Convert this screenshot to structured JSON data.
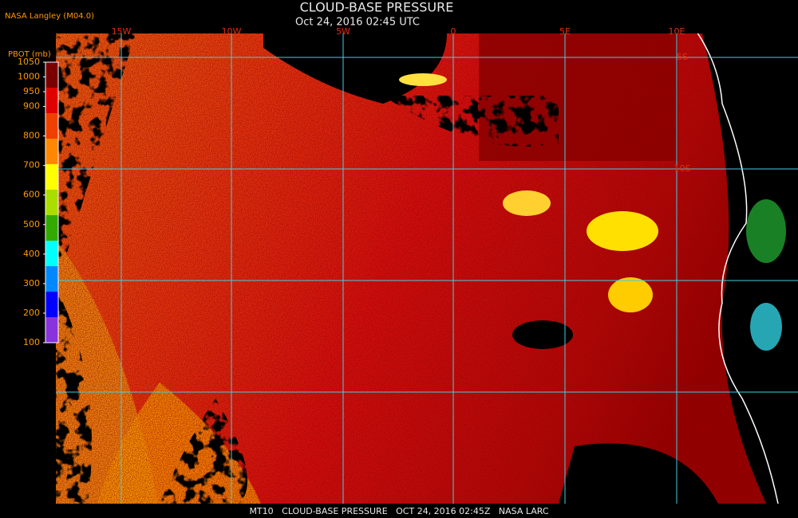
{
  "header": {
    "title": "CLOUD-BASE PRESSURE",
    "timestamp": "Oct 24, 2016 02:45 UTC",
    "source": "NASA Langley (M04.0)"
  },
  "colorbar": {
    "label": "PBOT (mb)",
    "ticks": [
      1050,
      1000,
      950,
      900,
      800,
      700,
      600,
      500,
      400,
      300,
      200,
      100
    ],
    "colors": [
      "#7a0000",
      "#e00000",
      "#f04000",
      "#ff8800",
      "#ffff00",
      "#aadd00",
      "#33aa00",
      "#00ffff",
      "#0088ff",
      "#0000ff",
      "#8833dd"
    ]
  },
  "map": {
    "longitude_labels": [
      "15W",
      "10W",
      "5W",
      "0",
      "5E",
      "10E"
    ],
    "latitude_labels": [
      "5S",
      "10S"
    ]
  },
  "footer": "MT10   CLOUD-BASE PRESSURE   OCT 24, 2016 02:45Z   NASA LARC"
}
